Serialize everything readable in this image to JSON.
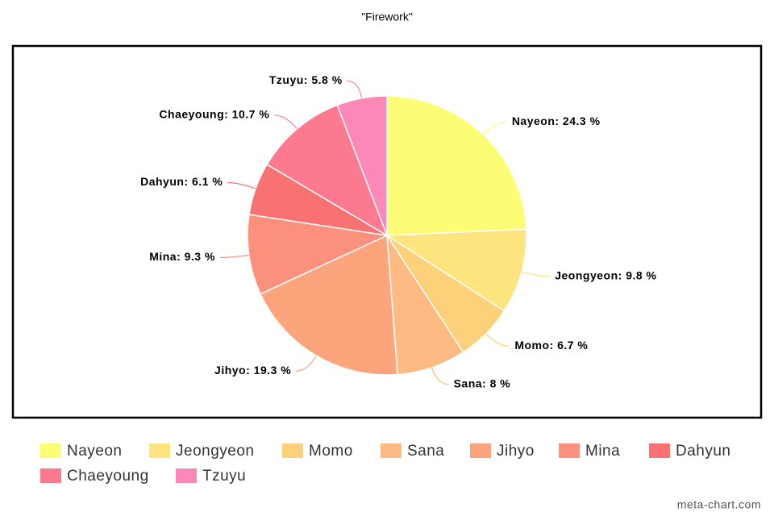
{
  "chart_data": {
    "type": "pie",
    "title": "\"Firework\"",
    "categories": [
      "Nayeon",
      "Jeongyeon",
      "Momo",
      "Sana",
      "Jihyo",
      "Mina",
      "Dahyun",
      "Chaeyoung",
      "Tzuyu"
    ],
    "values": [
      24.3,
      9.8,
      6.7,
      8,
      19.3,
      9.3,
      6.1,
      10.7,
      5.8
    ],
    "value_labels": [
      "Nayeon: 24.3 %",
      "Jeongyeon: 9.8 %",
      "Momo: 6.7 %",
      "Sana: 8 %",
      "Jihyo: 19.3 %",
      "Mina: 9.3 %",
      "Dahyun: 6.1 %",
      "Chaeyoung: 10.7 %",
      "Tzuyu: 5.8 %"
    ],
    "colors": [
      "#fdfd75",
      "#fde47f",
      "#fdd07a",
      "#fdbb83",
      "#fca57d",
      "#fb917d",
      "#f97272",
      "#fb7a8f",
      "#fb88b6"
    ],
    "legend": "bottom"
  },
  "watermark": "meta-chart.com"
}
